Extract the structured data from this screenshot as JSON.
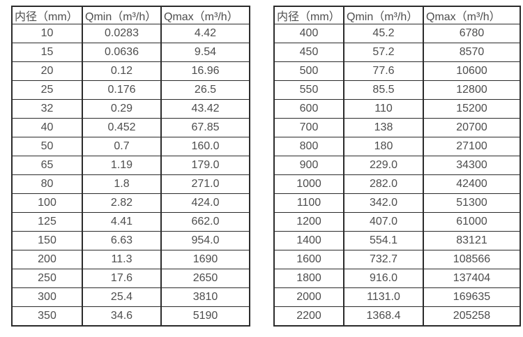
{
  "page": {
    "background_color": "#ffffff",
    "text_color": "#4d4d4d",
    "border_color": "#2b2b2b"
  },
  "chart_data": [
    {
      "type": "table",
      "title": "",
      "columns": [
        "内径（mm）",
        "Qmin（m³/h）",
        "Qmax（m³/h）"
      ],
      "rows": [
        [
          "10",
          "0.0283",
          "4.42"
        ],
        [
          "15",
          "0.0636",
          "9.54"
        ],
        [
          "20",
          "0.12",
          "16.96"
        ],
        [
          "25",
          "0.176",
          "26.5"
        ],
        [
          "32",
          "0.29",
          "43.42"
        ],
        [
          "40",
          "0.452",
          "67.85"
        ],
        [
          "50",
          "0.7",
          "160.0"
        ],
        [
          "65",
          "1.19",
          "179.0"
        ],
        [
          "80",
          "1.8",
          "271.0"
        ],
        [
          "100",
          "2.82",
          "424.0"
        ],
        [
          "125",
          "4.41",
          "662.0"
        ],
        [
          "150",
          "6.63",
          "954.0"
        ],
        [
          "200",
          "11.3",
          "1690"
        ],
        [
          "250",
          "17.6",
          "2650"
        ],
        [
          "300",
          "25.4",
          "3810"
        ],
        [
          "350",
          "34.6",
          "5190"
        ]
      ]
    },
    {
      "type": "table",
      "title": "",
      "columns": [
        "内径（mm）",
        "Qmin（m³/h）",
        "Qmax（m³/h）"
      ],
      "rows": [
        [
          "400",
          "45.2",
          "6780"
        ],
        [
          "450",
          "57.2",
          "8570"
        ],
        [
          "500",
          "77.6",
          "10600"
        ],
        [
          "550",
          "85.5",
          "12800"
        ],
        [
          "600",
          "110",
          "15200"
        ],
        [
          "700",
          "138",
          "20700"
        ],
        [
          "800",
          "180",
          "27100"
        ],
        [
          "900",
          "229.0",
          "34300"
        ],
        [
          "1000",
          "282.0",
          "42400"
        ],
        [
          "1100",
          "342.0",
          "51300"
        ],
        [
          "1200",
          "407.0",
          "61000"
        ],
        [
          "1400",
          "554.1",
          "83121"
        ],
        [
          "1600",
          "732.7",
          "108566"
        ],
        [
          "1800",
          "916.0",
          "137404"
        ],
        [
          "2000",
          "1131.0",
          "169635"
        ],
        [
          "2200",
          "1368.4",
          "205258"
        ]
      ]
    }
  ]
}
